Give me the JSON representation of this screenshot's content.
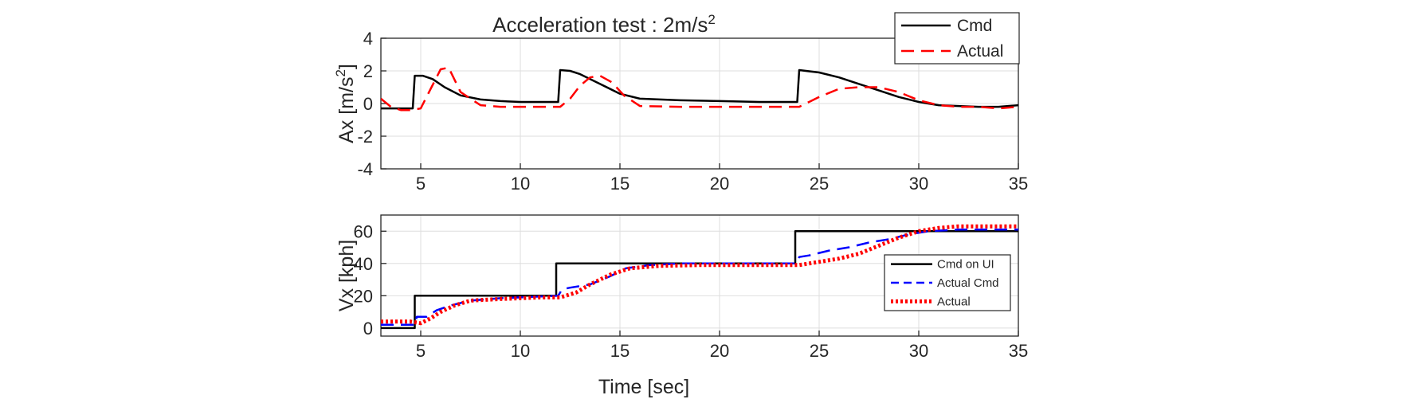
{
  "figure": {
    "title_main": "Acceleration test : 2m/s",
    "title_sup": "2",
    "xlabel": "Time [sec]"
  },
  "chart_data": [
    {
      "type": "line",
      "title": "Acceleration test : 2m/s²",
      "xlabel": "",
      "ylabel_main": "Ax [m/s",
      "ylabel_sup": "2",
      "ylabel_end": "]",
      "xlim": [
        3,
        35
      ],
      "ylim": [
        -4,
        4
      ],
      "xticks": [
        5,
        10,
        15,
        20,
        25,
        30,
        35
      ],
      "yticks": [
        -4,
        -2,
        0,
        2,
        4
      ],
      "grid": true,
      "legend_position": "top-right",
      "series": [
        {
          "name": "Cmd",
          "color": "#000000",
          "style": "solid",
          "x": [
            3,
            4.6,
            4.7,
            5.1,
            5.6,
            6.2,
            7,
            8,
            9,
            10,
            11.9,
            12.0,
            12.5,
            13,
            14,
            15,
            16,
            18,
            20,
            22,
            23.9,
            24.0,
            25,
            26,
            27,
            28,
            29,
            30,
            31,
            32,
            33,
            34,
            35
          ],
          "y": [
            -0.3,
            -0.3,
            1.7,
            1.7,
            1.5,
            1.0,
            0.5,
            0.25,
            0.15,
            0.1,
            0.1,
            2.05,
            2.0,
            1.8,
            1.2,
            0.6,
            0.3,
            0.2,
            0.15,
            0.1,
            0.1,
            2.05,
            1.9,
            1.6,
            1.2,
            0.8,
            0.4,
            0.1,
            -0.1,
            -0.15,
            -0.2,
            -0.2,
            -0.1
          ]
        },
        {
          "name": "Actual",
          "color": "#ff0000",
          "style": "dashed",
          "x": [
            3,
            3.5,
            4,
            4.5,
            5,
            5.5,
            6,
            6.4,
            7,
            8,
            9,
            10,
            11,
            12,
            12.5,
            13,
            13.5,
            14,
            14.6,
            15.2,
            16,
            18,
            20,
            22,
            24,
            25,
            26,
            27,
            28,
            29,
            30,
            31,
            32,
            33,
            34,
            35
          ],
          "y": [
            0.3,
            -0.2,
            -0.4,
            -0.4,
            -0.3,
            0.9,
            2.1,
            2.2,
            0.7,
            -0.1,
            -0.2,
            -0.2,
            -0.2,
            -0.2,
            0.3,
            1.1,
            1.6,
            1.7,
            1.3,
            0.5,
            -0.15,
            -0.2,
            -0.2,
            -0.2,
            -0.2,
            0.4,
            0.9,
            1.0,
            1.0,
            0.7,
            0.2,
            -0.1,
            -0.2,
            -0.2,
            -0.3,
            -0.2
          ]
        }
      ]
    },
    {
      "type": "line",
      "title": "",
      "xlabel": "Time [sec]",
      "ylabel": "Vx [kph]",
      "xlim": [
        3,
        35
      ],
      "ylim": [
        -5,
        70
      ],
      "xticks": [
        5,
        10,
        15,
        20,
        25,
        30,
        35
      ],
      "yticks": [
        0,
        20,
        40,
        60
      ],
      "grid": true,
      "legend_position": "bottom-right",
      "series": [
        {
          "name": "Cmd on UI",
          "color": "#000000",
          "style": "solid",
          "x": [
            3,
            4.7,
            4.7,
            11.8,
            11.8,
            23.8,
            23.8,
            35
          ],
          "y": [
            0,
            0,
            20,
            20,
            40,
            40,
            60,
            60
          ]
        },
        {
          "name": "Actual Cmd",
          "color": "#0000ff",
          "style": "dashed",
          "x": [
            3,
            4.7,
            4.8,
            5.3,
            5.8,
            6.5,
            7.5,
            9,
            11,
            11.9,
            12.1,
            12.5,
            13.5,
            14.5,
            15.3,
            16.5,
            18,
            20,
            22,
            23.8,
            24.0,
            24.5,
            25.5,
            26.5,
            27.5,
            28.5,
            29.5,
            30.5,
            32,
            35
          ],
          "y": [
            2,
            2,
            7,
            7,
            11,
            14,
            17,
            18.5,
            19.5,
            20,
            24,
            25,
            27,
            32,
            37,
            39,
            40,
            40,
            40,
            40,
            44,
            45,
            48,
            50,
            53,
            55,
            58,
            60,
            61,
            61
          ]
        },
        {
          "name": "Actual",
          "color": "#ff0000",
          "style": "dotted",
          "x": [
            3,
            4.5,
            5,
            5.5,
            6,
            6.7,
            7.5,
            9,
            11,
            12,
            12.8,
            13.5,
            14.5,
            15.5,
            17,
            19,
            21,
            23,
            24,
            25,
            26,
            27,
            28,
            29,
            30,
            31,
            32,
            33,
            34,
            35
          ],
          "y": [
            4,
            4,
            3,
            6,
            10,
            14,
            17,
            18,
            19,
            19,
            22,
            27,
            33,
            37,
            38.5,
            39,
            39,
            39,
            39,
            41,
            43,
            46,
            51,
            56,
            60,
            62,
            63,
            63,
            63,
            63
          ]
        }
      ]
    }
  ]
}
